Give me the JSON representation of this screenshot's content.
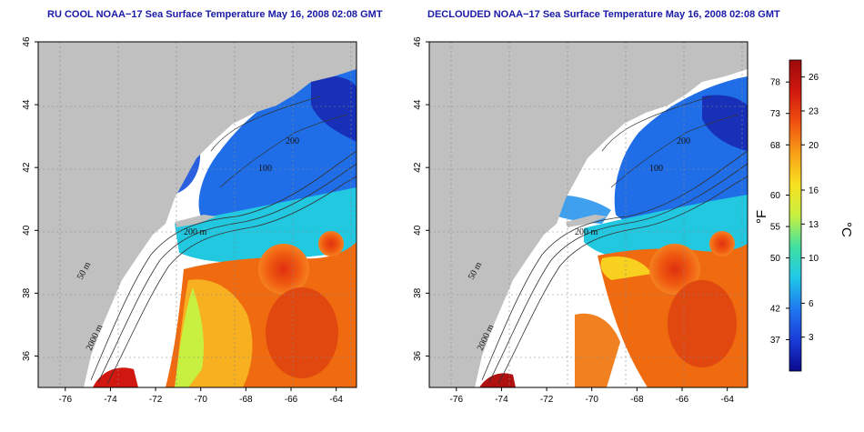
{
  "panels": [
    {
      "id": "left",
      "title": "RU COOL NOAA−17 Sea Surface Temperature May 16, 2008 02:08 GMT",
      "contour_labels": [
        "50 m",
        "200 m",
        "100",
        "200",
        "2000 m"
      ]
    },
    {
      "id": "right",
      "title": "DECLOUDED NOAA−17 Sea Surface Temperature May 16, 2008 02:08 GMT",
      "contour_labels": [
        "50 m",
        "200 m",
        "100",
        "200",
        "2000 m"
      ]
    }
  ],
  "axes": {
    "lon_ticks": [
      -76,
      -74,
      -72,
      -70,
      -68,
      -66,
      -64
    ],
    "lat_ticks": [
      36,
      38,
      40,
      42,
      44,
      46
    ],
    "lon_range": [
      -77.2,
      -63.1
    ],
    "lat_range": [
      35.0,
      46.0
    ]
  },
  "colorbar": {
    "unit_f": "°F",
    "unit_c": "°C",
    "fahrenheit_ticks": [
      "78",
      "73",
      "68",
      "60",
      "55",
      "50",
      "42",
      "37"
    ],
    "celsius_ticks": [
      "26",
      "23",
      "20",
      "16",
      "13",
      "10",
      "6",
      "3"
    ],
    "colors": [
      "#0a0a8c",
      "#1a3cd8",
      "#1f78f0",
      "#20c8e8",
      "#40e0a0",
      "#c8f040",
      "#f8e020",
      "#f8a018",
      "#f05010",
      "#d01810",
      "#9c0a0a"
    ]
  },
  "colors": {
    "land": "#c0c0c0",
    "cloud": "#ffffff",
    "title": "#1a1aa8"
  }
}
